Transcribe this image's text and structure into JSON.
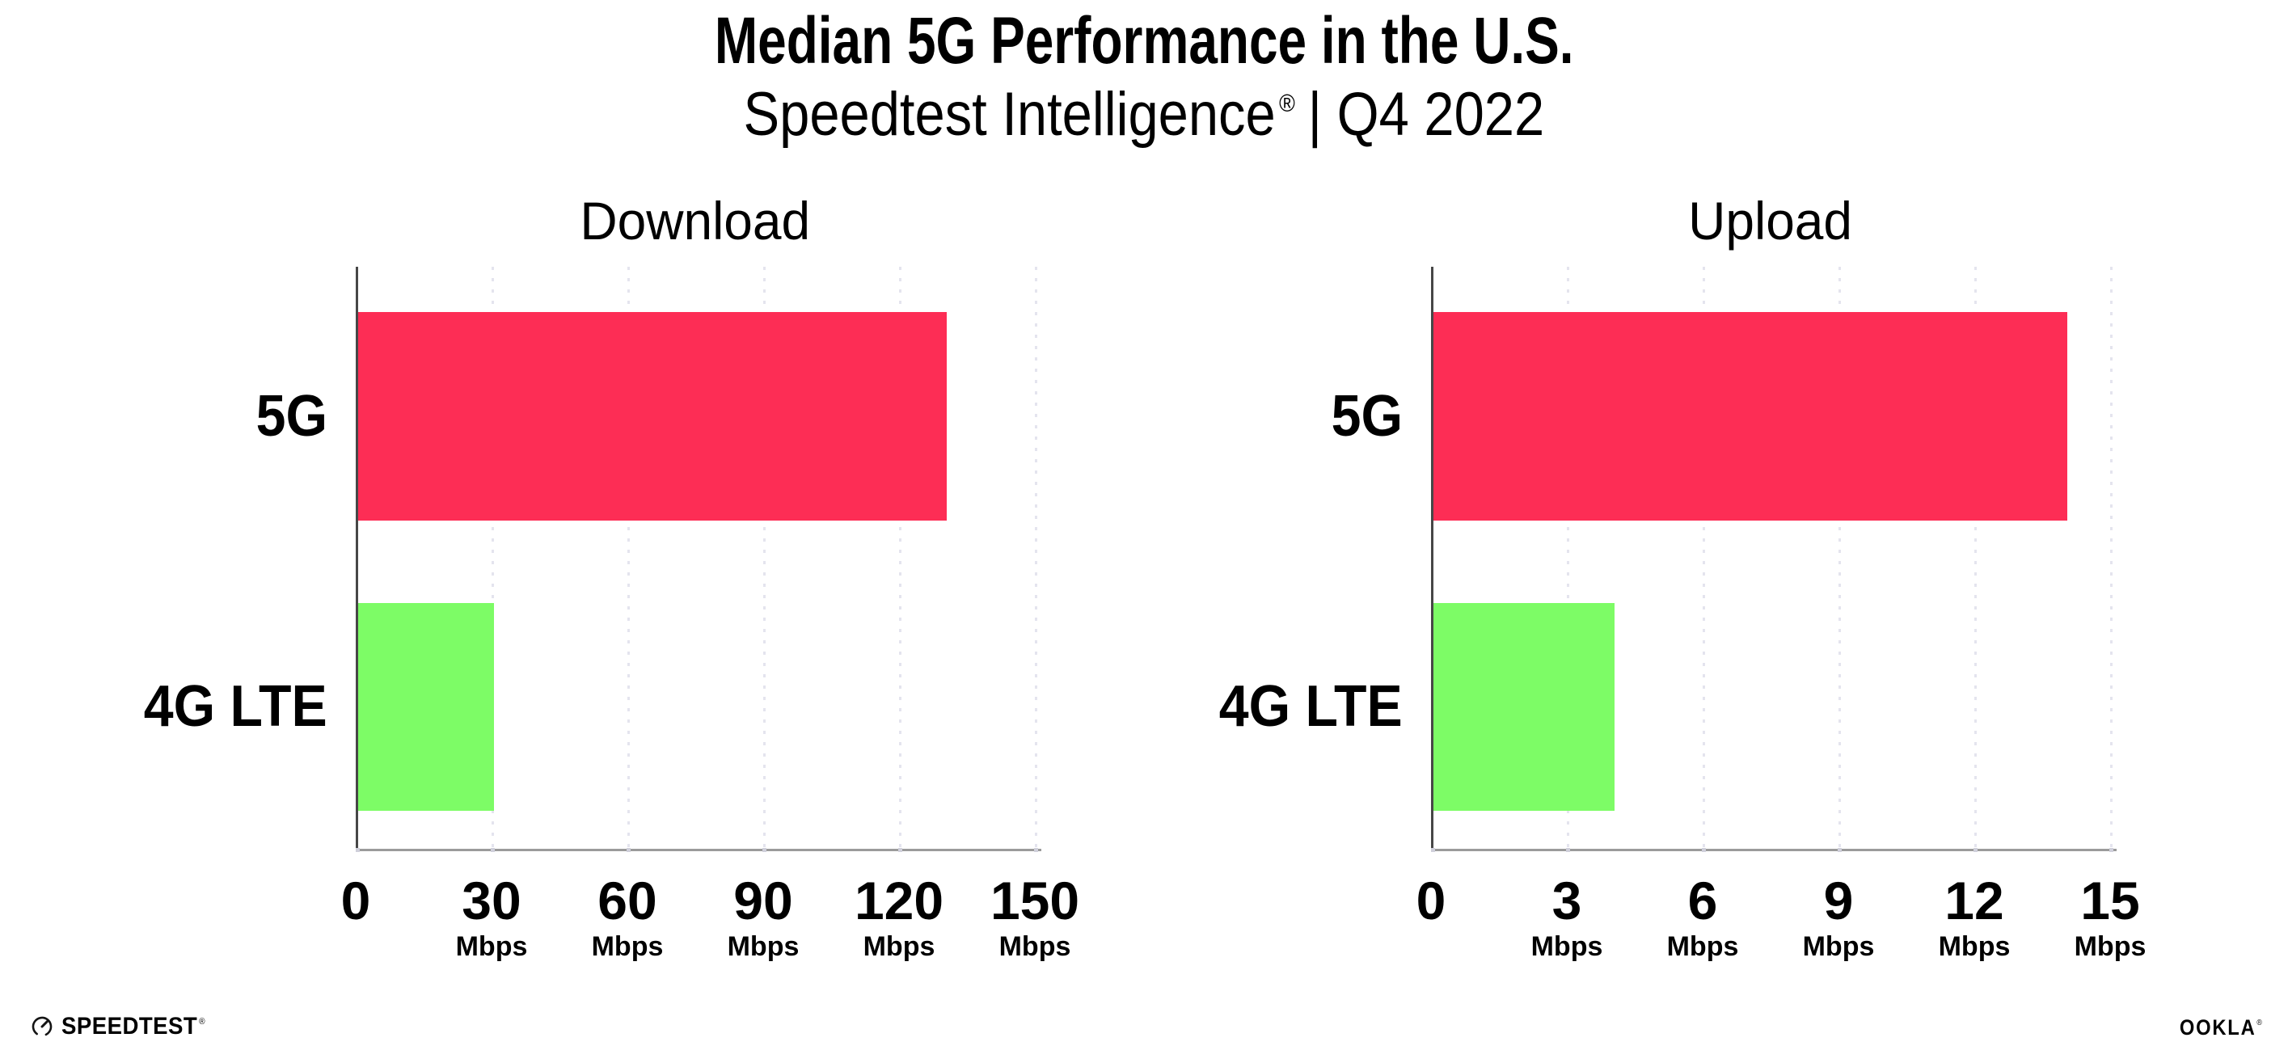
{
  "page": {
    "background": "#FFFFFF",
    "text_color": "#000000"
  },
  "header": {
    "title": "Median 5G Performance in the U.S.",
    "subtitle_brand": "Speedtest Intelligence",
    "subtitle_reg": "®",
    "subtitle_rest": "| Q4 2022"
  },
  "chart_data": [
    {
      "type": "bar",
      "orientation": "horizontal",
      "title": "Download",
      "categories": [
        "5G",
        "4G LTE"
      ],
      "values": [
        130,
        30
      ],
      "unit": "Mbps",
      "xlabel": "",
      "ylabel": "",
      "xlim": [
        0,
        150
      ],
      "xticks": [
        0,
        30,
        60,
        90,
        120,
        150
      ],
      "bar_colors": [
        "#FD2D55",
        "#7DFC66"
      ],
      "grid": "vertical-dotted",
      "legend": "none"
    },
    {
      "type": "bar",
      "orientation": "horizontal",
      "title": "Upload",
      "categories": [
        "5G",
        "4G LTE"
      ],
      "values": [
        14,
        4
      ],
      "unit": "Mbps",
      "xlabel": "",
      "ylabel": "",
      "xlim": [
        0,
        15
      ],
      "xticks": [
        0,
        3,
        6,
        9,
        12,
        15
      ],
      "bar_colors": [
        "#FD2D55",
        "#7DFC66"
      ],
      "grid": "vertical-dotted",
      "legend": "none"
    }
  ],
  "style": {
    "bar_5g_color": "#FD2D55",
    "bar_4g_color": "#7DFC66",
    "gridline_color": "#E4E4EE",
    "y_axis_color": "#474747",
    "x_axis_color": "#9B9B9B"
  },
  "footer": {
    "speedtest_icon": "speedtest-gauge-icon",
    "speedtest_label": "SPEEDTEST",
    "speedtest_reg": "®",
    "ookla_label": "OOKLA",
    "ookla_reg": "®"
  }
}
